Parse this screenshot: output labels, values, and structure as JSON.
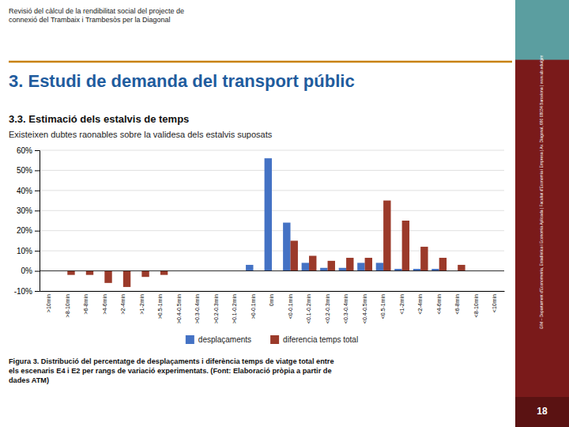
{
  "chart_data": {
    "type": "bar",
    "title": "3. Estudi de demanda del transport públic",
    "subtitle": "3.3. Estimació dels estalvis de temps",
    "annotations": [
      "Existeixen dubtes raonables sobre la validesa dels estalvis suposats",
      "Revisió del càlcul de la rendibilitat social del projecte de\nconnexió del Trambaix i Trambesòs per la Diagonal",
      "Figura 3. Distribució del percentatge de desplaçaments i diferència temps de viatge total entre\nels escenaris E4 i E2 per rangs de variació experimentats. (Font: Elaboració pròpia a partir de\ndades ATM)",
      "GIM – Departament d'Econometria, Estadística i Economia Aplicada | Facultat d'Economia i Empresa | Av. Diagonal, 690 08034 Barcelona | www.ub.edu/gim",
      "18"
    ],
    "categories": [
      ">10min",
      ">8-10min",
      ">6-8min",
      ">4-6min",
      ">2-4min",
      ">1-2min",
      ">0.5-1min",
      ">0.4-0.5min",
      ">0.3-0.4min",
      ">0.2-0.3min",
      ">0.1-0.2min",
      ">0-0.1min",
      "0min",
      "<0-0.1min",
      "<0.1-0.2min",
      "<0.2-0.3min",
      "<0.3-0.4min",
      "<0.4-0.5min",
      "<0.5-1min",
      "<1-2min",
      "<2-4min",
      "<4-6min",
      "<6-8min",
      "<8-10min",
      "<10min"
    ],
    "series": [
      {
        "name": "desplaçaments",
        "color": "#4472C4",
        "values": [
          0.0,
          0.0,
          0.0,
          0.0,
          0.0,
          0.0,
          0.0,
          0.0,
          0.0,
          0.0,
          0.0,
          0.03,
          0.56,
          0.24,
          0.04,
          0.015,
          0.015,
          0.04,
          0.04,
          0.01,
          0.01,
          0.01,
          0.0,
          0.0,
          0.0
        ]
      },
      {
        "name": "diferencia temps total",
        "color": "#9B3A2A",
        "values": [
          0.0,
          -0.02,
          -0.02,
          -0.06,
          -0.08,
          -0.03,
          -0.02,
          0.0,
          0.0,
          0.0,
          0.0,
          0.0,
          0.0,
          0.15,
          0.075,
          0.05,
          0.065,
          0.065,
          0.35,
          0.25,
          0.12,
          0.065,
          0.03,
          0.0,
          0.0
        ]
      }
    ],
    "ylim": [
      -0.1,
      0.6
    ],
    "yticks": [
      {
        "value": -0.1,
        "label": "-10%"
      },
      {
        "value": 0.0,
        "label": "0%"
      },
      {
        "value": 0.1,
        "label": "10%"
      },
      {
        "value": 0.2,
        "label": "20%"
      },
      {
        "value": 0.3,
        "label": "30%"
      },
      {
        "value": 0.4,
        "label": "40%"
      },
      {
        "value": 0.5,
        "label": "50%"
      },
      {
        "value": 0.6,
        "label": "60%"
      }
    ],
    "grid": true,
    "legend": "bottom"
  }
}
